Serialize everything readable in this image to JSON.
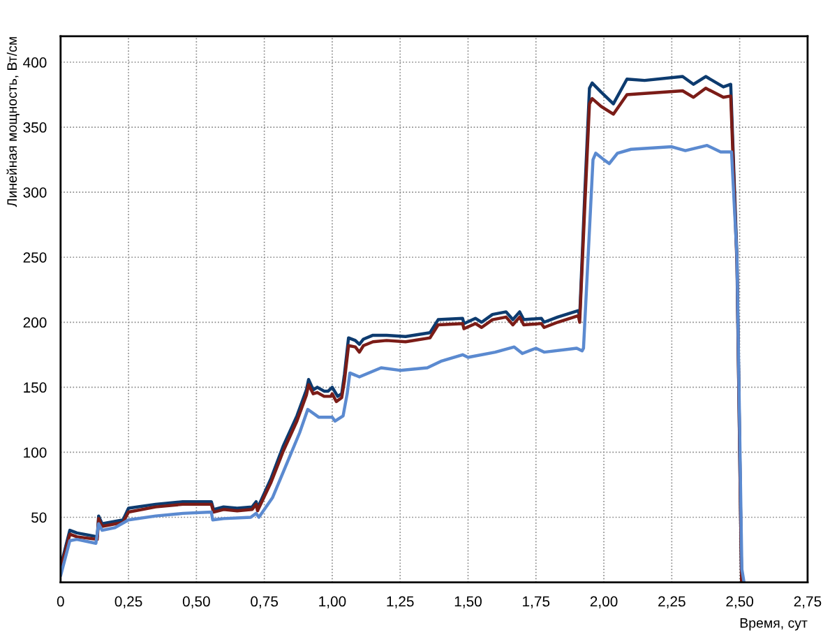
{
  "chart_data": {
    "type": "line",
    "xlabel": "Время, сут",
    "ylabel": "Линейная мощность, Вт/см",
    "xlim": [
      0,
      2.75
    ],
    "ylim": [
      0,
      420
    ],
    "xticks": [
      {
        "value": 0,
        "label": "0"
      },
      {
        "value": 0.25,
        "label": "0,25"
      },
      {
        "value": 0.5,
        "label": "0,50"
      },
      {
        "value": 0.75,
        "label": "0,75"
      },
      {
        "value": 1.0,
        "label": "1,00"
      },
      {
        "value": 1.25,
        "label": "1,25"
      },
      {
        "value": 1.5,
        "label": "1,50"
      },
      {
        "value": 1.75,
        "label": "1,75"
      },
      {
        "value": 2.0,
        "label": "2,00"
      },
      {
        "value": 2.25,
        "label": "2,25"
      },
      {
        "value": 2.5,
        "label": "2,50"
      },
      {
        "value": 2.75,
        "label": "2,75"
      }
    ],
    "yticks": [
      50,
      100,
      150,
      200,
      250,
      300,
      350,
      400
    ],
    "grid": true,
    "line_style": "solid",
    "marker": "none",
    "series": [
      {
        "color": "#0d3b6f",
        "x": [
          0,
          0.034,
          0.06,
          0.135,
          0.14,
          0.153,
          0.23,
          0.25,
          0.35,
          0.45,
          0.555,
          0.563,
          0.6,
          0.65,
          0.705,
          0.72,
          0.725,
          0.775,
          0.82,
          0.87,
          0.905,
          0.913,
          0.93,
          0.945,
          0.97,
          0.985,
          1.0,
          1.02,
          1.035,
          1.045,
          1.06,
          1.085,
          1.1,
          1.115,
          1.15,
          1.2,
          1.27,
          1.36,
          1.39,
          1.48,
          1.485,
          1.527,
          1.55,
          1.59,
          1.64,
          1.665,
          1.69,
          1.705,
          1.77,
          1.78,
          1.83,
          1.906,
          1.911,
          1.93,
          1.947,
          1.957,
          1.99,
          2.035,
          2.085,
          2.15,
          2.29,
          2.33,
          2.375,
          2.44,
          2.467,
          2.49,
          2.507
        ],
        "values": [
          12,
          40,
          38,
          35,
          51,
          45,
          48,
          57,
          60,
          62,
          62,
          56,
          58,
          57,
          58,
          62,
          57,
          80,
          105,
          128,
          148,
          156,
          148,
          150,
          147,
          147,
          150,
          143,
          145,
          160,
          188,
          186,
          183,
          187,
          190,
          190,
          189,
          192,
          202,
          203,
          199,
          203,
          200,
          206,
          208,
          202,
          208,
          202,
          203,
          200,
          204,
          209,
          204,
          300,
          380,
          384,
          377,
          368,
          387,
          386,
          389,
          383,
          389,
          381,
          383,
          250,
          0
        ]
      },
      {
        "color": "#7b1c17",
        "x": [
          0,
          0.034,
          0.06,
          0.135,
          0.14,
          0.153,
          0.23,
          0.25,
          0.35,
          0.45,
          0.555,
          0.563,
          0.6,
          0.65,
          0.705,
          0.72,
          0.725,
          0.775,
          0.82,
          0.87,
          0.905,
          0.913,
          0.93,
          0.945,
          0.97,
          0.995,
          1.0,
          1.015,
          1.035,
          1.045,
          1.06,
          1.085,
          1.1,
          1.115,
          1.15,
          1.2,
          1.27,
          1.36,
          1.39,
          1.48,
          1.485,
          1.527,
          1.55,
          1.59,
          1.64,
          1.665,
          1.69,
          1.705,
          1.77,
          1.78,
          1.83,
          1.906,
          1.911,
          1.93,
          1.947,
          1.957,
          1.99,
          2.035,
          2.085,
          2.15,
          2.29,
          2.33,
          2.375,
          2.44,
          2.467,
          2.49,
          2.507
        ],
        "values": [
          10,
          37,
          35,
          33,
          49,
          43,
          46,
          54,
          58,
          60,
          60,
          54,
          56,
          55,
          56,
          60,
          55,
          77,
          101,
          124,
          144,
          152,
          145,
          146,
          143,
          143,
          145,
          139,
          142,
          155,
          182,
          181,
          177,
          182,
          185,
          186,
          185,
          188,
          198,
          199,
          195,
          199,
          196,
          202,
          204,
          198,
          204,
          198,
          199,
          196,
          200,
          205,
          200,
          290,
          368,
          372,
          366,
          360,
          375,
          376,
          378,
          373,
          380,
          373,
          374,
          245,
          0
        ]
      },
      {
        "color": "#5b8ad0",
        "x": [
          0,
          0.034,
          0.06,
          0.13,
          0.14,
          0.153,
          0.2,
          0.25,
          0.35,
          0.45,
          0.555,
          0.56,
          0.6,
          0.7,
          0.72,
          0.73,
          0.78,
          0.83,
          0.88,
          0.91,
          0.95,
          1.0,
          1.01,
          1.04,
          1.055,
          1.065,
          1.1,
          1.18,
          1.25,
          1.35,
          1.4,
          1.48,
          1.5,
          1.6,
          1.67,
          1.7,
          1.75,
          1.78,
          1.9,
          1.92,
          1.925,
          1.96,
          1.97,
          2.0,
          2.02,
          2.05,
          2.1,
          2.25,
          2.3,
          2.38,
          2.43,
          2.47,
          2.49,
          2.508,
          2.516
        ],
        "values": [
          5,
          32,
          33,
          30,
          45,
          40,
          42,
          48,
          51,
          53,
          54,
          48,
          49,
          50,
          53,
          50,
          65,
          90,
          115,
          133,
          127,
          127,
          124,
          128,
          145,
          161,
          158,
          165,
          163,
          165,
          170,
          175,
          173,
          177,
          181,
          176,
          180,
          177,
          180,
          178,
          180,
          325,
          330,
          325,
          322,
          330,
          333,
          335,
          332,
          336,
          331,
          331,
          250,
          10,
          0
        ]
      }
    ]
  }
}
